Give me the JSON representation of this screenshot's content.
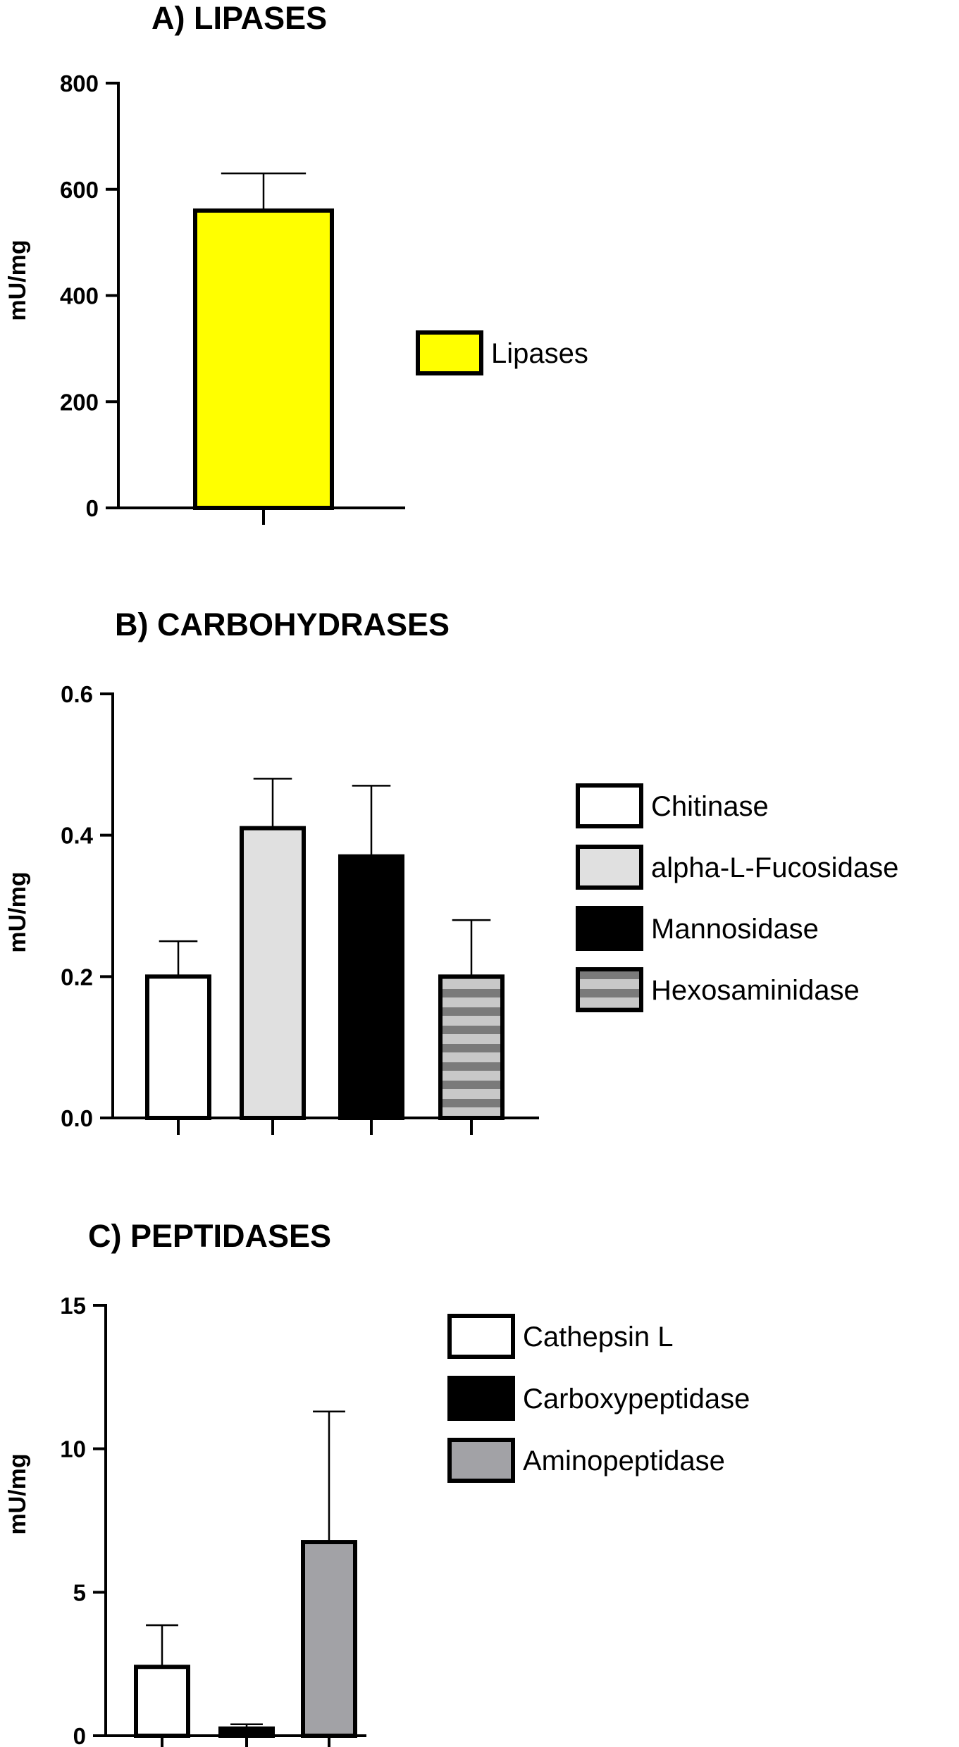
{
  "chart_data": [
    {
      "type": "bar",
      "title": "A) LIPASES",
      "ylabel": "mU/mg",
      "ylim": [
        0,
        800
      ],
      "yticks": [
        "0",
        "200",
        "400",
        "600",
        "800"
      ],
      "legend_position": "right",
      "series": [
        {
          "name": "Lipases",
          "value": 560,
          "error": 70,
          "color": "#ffff00",
          "pattern": "solid"
        }
      ]
    },
    {
      "type": "bar",
      "title": "B) CARBOHYDRASES",
      "ylabel": "mU/mg",
      "ylim": [
        0,
        0.6
      ],
      "yticks": [
        "0.0",
        "0.2",
        "0.4",
        "0.6"
      ],
      "legend_position": "right",
      "series": [
        {
          "name": "Chitinase",
          "value": 0.2,
          "error": 0.05,
          "color": "#ffffff",
          "pattern": "solid"
        },
        {
          "name": "alpha-L-Fucosidase",
          "value": 0.41,
          "error": 0.07,
          "color": "#e0e0e0",
          "pattern": "solid"
        },
        {
          "name": "Mannosidase",
          "value": 0.37,
          "error": 0.1,
          "color": "#000000",
          "pattern": "solid"
        },
        {
          "name": "Hexosaminidase",
          "value": 0.2,
          "error": 0.08,
          "color": "#c8c8c8",
          "pattern": "horizontal-stripes"
        }
      ]
    },
    {
      "type": "bar",
      "title": "C) PEPTIDASES",
      "ylabel": "mU/mg",
      "ylim": [
        0,
        15
      ],
      "yticks": [
        "0",
        "5",
        "10",
        "15"
      ],
      "legend_position": "right",
      "series": [
        {
          "name": "Cathepsin L",
          "value": 2.4,
          "error": 1.45,
          "color": "#ffffff",
          "pattern": "solid"
        },
        {
          "name": "Carboxypeptidase",
          "value": 0.25,
          "error": 0.15,
          "color": "#000000",
          "pattern": "solid"
        },
        {
          "name": "Aminopeptidase",
          "value": 6.75,
          "error": 4.55,
          "color": "#a2a2a6",
          "pattern": "solid"
        }
      ]
    }
  ]
}
